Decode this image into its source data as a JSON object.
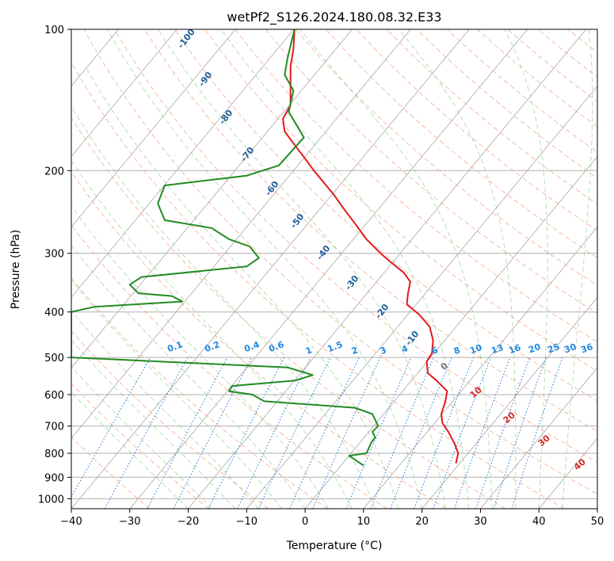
{
  "chart_data": {
    "type": "line",
    "title": "wetPf2_S126.2024.180.08.32.E33",
    "xlabel": "Temperature (°C)",
    "ylabel": "Pressure (hPa)",
    "xlim": [
      -40,
      50
    ],
    "ylim": [
      1050,
      100
    ],
    "y_scale": "log",
    "grid": true,
    "x_ticks": [
      -40,
      -30,
      -20,
      -10,
      0,
      10,
      20,
      30,
      40,
      50
    ],
    "y_ticks": [
      100,
      200,
      300,
      400,
      500,
      600,
      700,
      800,
      900,
      1000
    ],
    "series": [
      {
        "color": "#e41a1c",
        "points": [
          [
            25.8,
            840
          ],
          [
            26.0,
            820
          ],
          [
            26.2,
            800
          ],
          [
            25.5,
            760
          ],
          [
            24.5,
            720
          ],
          [
            23.5,
            690
          ],
          [
            23.3,
            660
          ],
          [
            24.0,
            620
          ],
          [
            24.3,
            590
          ],
          [
            22.5,
            560
          ],
          [
            21.0,
            540
          ],
          [
            20.8,
            510
          ],
          [
            21.7,
            490
          ],
          [
            21.9,
            460
          ],
          [
            21.3,
            430
          ],
          [
            19.5,
            405
          ],
          [
            17.4,
            385
          ],
          [
            17.6,
            365
          ],
          [
            18.0,
            345
          ],
          [
            16.9,
            330
          ],
          [
            14.9,
            315
          ],
          [
            12.9,
            300
          ],
          [
            10.5,
            280
          ],
          [
            8.6,
            260
          ],
          [
            6.5,
            240
          ],
          [
            4.9,
            225
          ],
          [
            1.5,
            200
          ],
          [
            0.2,
            190
          ],
          [
            -2.0,
            175
          ],
          [
            -3.5,
            165
          ],
          [
            -3.8,
            155
          ],
          [
            -2.5,
            145
          ],
          [
            -2.5,
            132
          ],
          [
            -2.5,
            120
          ],
          [
            -2.0,
            110
          ],
          [
            -1.8,
            100
          ]
        ]
      },
      {
        "color": "#228b22",
        "points": [
          [
            10.0,
            850
          ],
          [
            8.2,
            820
          ],
          [
            7.5,
            810
          ],
          [
            10.5,
            800
          ],
          [
            11.3,
            760
          ],
          [
            12.0,
            740
          ],
          [
            11.5,
            720
          ],
          [
            12.5,
            700
          ],
          [
            11.5,
            660
          ],
          [
            8.5,
            640
          ],
          [
            -7.0,
            620
          ],
          [
            -9.0,
            600
          ],
          [
            -13.0,
            590
          ],
          [
            -12.5,
            575
          ],
          [
            -1.7,
            560
          ],
          [
            1.3,
            545
          ],
          [
            -3.0,
            525
          ],
          [
            -40.0,
            500
          ],
          [
            -40.0,
            400
          ],
          [
            -36.0,
            390
          ],
          [
            -21.0,
            380
          ],
          [
            -22.8,
            370
          ],
          [
            -28.5,
            365
          ],
          [
            -30.0,
            350
          ],
          [
            -28.0,
            337
          ],
          [
            -10.0,
            320
          ],
          [
            -7.9,
            307
          ],
          [
            -9.5,
            290
          ],
          [
            -13.0,
            280
          ],
          [
            -16.0,
            265
          ],
          [
            -24.0,
            255
          ],
          [
            -25.2,
            235
          ],
          [
            -24.0,
            215
          ],
          [
            -10.0,
            205
          ],
          [
            -4.5,
            195
          ],
          [
            -0.2,
            170
          ],
          [
            -2.8,
            150
          ],
          [
            -2.0,
            135
          ],
          [
            -3.5,
            125
          ],
          [
            -3.0,
            115
          ],
          [
            -1.8,
            100
          ]
        ]
      }
    ],
    "isotherm_labels": [
      "0",
      "10",
      "20",
      "30",
      "40"
    ],
    "dry_adiabat_labels": [
      "-100",
      "-90",
      "-80",
      "-70",
      "-60",
      "-50",
      "-40",
      "-30",
      "-20",
      "-10"
    ],
    "mixing_ratio_labels": [
      "0.1",
      "0.2",
      "0.4",
      "0.6",
      "1",
      "1.5",
      "2",
      "3",
      "4",
      "6",
      "8",
      "10",
      "13",
      "16",
      "20",
      "25",
      "30",
      "36"
    ]
  }
}
